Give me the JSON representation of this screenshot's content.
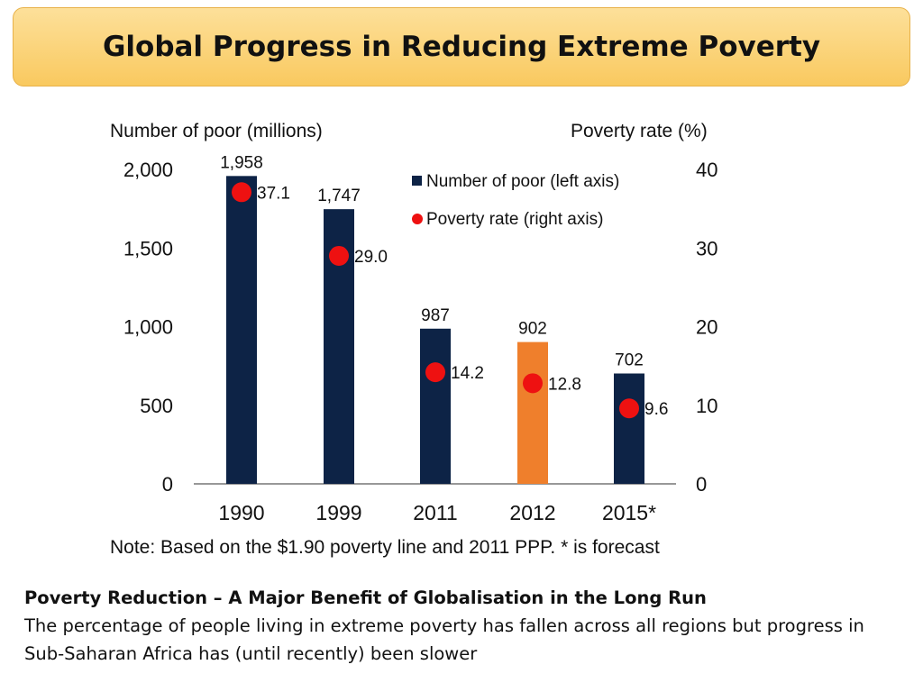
{
  "slide": {
    "title": "Global Progress in Reducing Extreme Poverty",
    "caption_heading": "Poverty Reduction – A Major Benefit of Globalisation in the Long Run",
    "caption_body": "The percentage of people living in extreme poverty has fallen across all regions but progress in Sub-Saharan Africa has (until recently) been slower"
  },
  "chart_data": {
    "type": "bar",
    "categories": [
      "1990",
      "1999",
      "2011",
      "2012",
      "2015*"
    ],
    "series": [
      {
        "name": "Number of poor (left axis)",
        "type": "bar",
        "axis": "left",
        "values": [
          1958,
          1747,
          987,
          902,
          702
        ],
        "value_labels": [
          "1,958",
          "1,747",
          "987",
          "902",
          "702"
        ],
        "colors": [
          "#0d2346",
          "#0d2346",
          "#0d2346",
          "#ef7f2c",
          "#0d2346"
        ]
      },
      {
        "name": "Poverty rate (right axis)",
        "type": "scatter",
        "axis": "right",
        "values": [
          37.1,
          29.0,
          14.2,
          12.8,
          9.6
        ],
        "value_labels": [
          "37.1",
          "29.0",
          "14.2",
          "12.8",
          "9.6"
        ],
        "color": "#ee1111"
      }
    ],
    "ylabel": "Number of poor (millions)",
    "ylabel_right": "Poverty rate (%)",
    "ylim": [
      0,
      2000
    ],
    "ylim_right": [
      0,
      40
    ],
    "yticks": [
      0,
      500,
      1000,
      1500,
      2000
    ],
    "ytick_labels": [
      "0",
      "500",
      "1,000",
      "1,500",
      "2,000"
    ],
    "yticks_right": [
      0,
      10,
      20,
      30,
      40
    ],
    "ytick_labels_right": [
      "0",
      "10",
      "20",
      "30",
      "40"
    ],
    "note": "Note: Based on the $1.90 poverty line and 2011 PPP. * is forecast",
    "legend_position": "top-right",
    "grid": false
  }
}
